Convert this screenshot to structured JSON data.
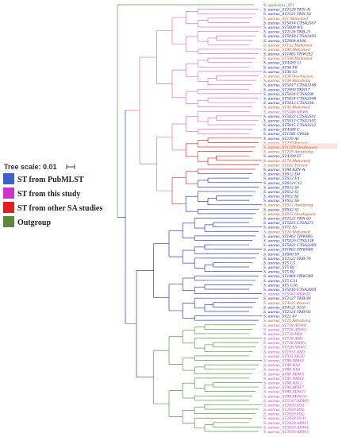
{
  "scale": {
    "label": "Tree scale: 0.01"
  },
  "legend": [
    {
      "label": "ST from PubMLST",
      "color": "#3b62c8"
    },
    {
      "label": "ST from this study",
      "color": "#cc33cc"
    },
    {
      "label": "ST from other SA studies",
      "color": "#e02020"
    },
    {
      "label": "Outgroup",
      "color": "#5a8a3a"
    }
  ],
  "colors": {
    "pubmlst_text": "#1a1aa8",
    "this_study_text": "#c040c0",
    "other_sa_text": "#c8501e",
    "outgroup_text": "#3a8a2a",
    "branch_pink": "#e070c0",
    "branch_blue": "#3040c0",
    "branch_green": "#5a9a4a",
    "branch_red": "#e03030",
    "highlight_bg": "#fbe4e0"
  },
  "leaves": [
    {
      "text": "S. epidermis_ST1",
      "group": "outgroup"
    },
    {
      "text": "S. aureus_ST2128 TKN-41",
      "group": "pubmlst"
    },
    {
      "text": "S. aureus_ST2125 TKN-54",
      "group": "pubmlst"
    },
    {
      "text": "S. aureus_ST1 Mahomed",
      "group": "other"
    },
    {
      "text": "S. aureus_ST5014 CTSA3567",
      "group": "pubmlst"
    },
    {
      "text": "S. aureus_ST5608 W6",
      "group": "pubmlst"
    },
    {
      "text": "S. aureus_ST2126 TKB-21",
      "group": "pubmlst"
    },
    {
      "text": "S. aureus_ST5018 CTSA3195",
      "group": "pubmlst"
    },
    {
      "text": "S. aureus_ST2068 A166",
      "group": "pubmlst"
    },
    {
      "text": "S. aureus_ST152 Mahomed",
      "group": "other"
    },
    {
      "text": "S. aureus_ST30 Mahomed",
      "group": "other"
    },
    {
      "text": "S. aureus_ST1865 THW292",
      "group": "pubmlst"
    },
    {
      "text": "S. aureus_ST508 Mahomed",
      "group": "other"
    },
    {
      "text": "S. aureus_ST4589 51",
      "group": "pubmlst"
    },
    {
      "text": "S. aureus_ST36 F8",
      "group": "pubmlst"
    },
    {
      "text": "S. aureus_ST36 S3",
      "group": "pubmlst"
    },
    {
      "text": "S. aureus_ST36 Oosthuysen",
      "group": "other"
    },
    {
      "text": "S. aureus_ST36 Antiabong",
      "group": "other"
    },
    {
      "text": "S. aureus_ST5017 CTSA3148",
      "group": "pubmlst"
    },
    {
      "text": "S. aureus_ST2090 TKH17",
      "group": "pubmlst"
    },
    {
      "text": "S. aureus_ST5024 CTSA598",
      "group": "pubmlst"
    },
    {
      "text": "S. aureus_ST5024 CTSA3348",
      "group": "pubmlst"
    },
    {
      "text": "S. aureus_ST5012 CTSA336",
      "group": "pubmlst"
    },
    {
      "text": "S. aureus_ST45 Mahomed",
      "group": "other"
    },
    {
      "text": "S. aureus_ST5546 NRW6",
      "group": "this"
    },
    {
      "text": "S. aureus_ST5022 CTSA3501",
      "group": "pubmlst"
    },
    {
      "text": "S. aureus_ST5013 CTSA3105",
      "group": "pubmlst"
    },
    {
      "text": "S. aureus_ST5015 CTSA3212",
      "group": "pubmlst"
    },
    {
      "text": "S. aureus_ST4588 C",
      "group": "pubmlst"
    },
    {
      "text": "S. aureus_ST1585 CPS4b",
      "group": "pubmlst"
    },
    {
      "text": "S. aureus_ST239 A1",
      "group": "pubmlst"
    },
    {
      "text": "S. aureus_ST239 Perovic",
      "group": "other"
    },
    {
      "text": "S. aureus_ST1239 Oosthuysen",
      "group": "other",
      "highlight": true
    },
    {
      "text": "S. aureus_ST239 Antiabong",
      "group": "other"
    },
    {
      "text": "S. aureus_ST4590 57",
      "group": "pubmlst"
    },
    {
      "text": "S. aureus_ST78 Mahomed",
      "group": "other"
    },
    {
      "text": "S. aureus_ST162 Perovic",
      "group": "other"
    },
    {
      "text": "S. aureus_ST88 KZN-A",
      "group": "pubmlst"
    },
    {
      "text": "S. aureus_ST612 D4",
      "group": "pubmlst"
    },
    {
      "text": "S. aureus_ST612 E4",
      "group": "pubmlst"
    },
    {
      "text": "S. aureus_ST612 C12",
      "group": "pubmlst"
    },
    {
      "text": "S. aureus_ST612 S4",
      "group": "pubmlst"
    },
    {
      "text": "S. aureus_ST612 S1",
      "group": "pubmlst"
    },
    {
      "text": "S. aureus_ST612 S2",
      "group": "pubmlst"
    },
    {
      "text": "S. aureus_ST612 S6",
      "group": "pubmlst"
    },
    {
      "text": "S. aureus_ST612 Antiabong",
      "group": "other"
    },
    {
      "text": "S. aureus_ST632 S1",
      "group": "pubmlst"
    },
    {
      "text": "S. aureus_ST612 Oosthuysen",
      "group": "other"
    },
    {
      "text": "S. aureus_ST2123 TKN-62",
      "group": "pubmlst"
    },
    {
      "text": "S. aureus_ST5025 CTSA371",
      "group": "pubmlst"
    },
    {
      "text": "S. aureus_ST72 S5",
      "group": "pubmlst"
    },
    {
      "text": "S. aureus_ST20 Mahomed",
      "group": "other"
    },
    {
      "text": "S. aureus_ST1862 THW065",
      "group": "pubmlst"
    },
    {
      "text": "S. aureus_ST5020 CTSA138",
      "group": "pubmlst"
    },
    {
      "text": "S. aureus_ST5023 CTSA3269",
      "group": "pubmlst"
    },
    {
      "text": "S. aureus_ST1863 THW068",
      "group": "pubmlst"
    },
    {
      "text": "S. aureus_ST600 S9",
      "group": "pubmlst"
    },
    {
      "text": "S. aureus_ST2122 TKB-76",
      "group": "pubmlst"
    },
    {
      "text": "S. aureus_ST5 C5",
      "group": "pubmlst"
    },
    {
      "text": "S. aureus_ST5 B1",
      "group": "pubmlst"
    },
    {
      "text": "S. aureus_ST5 B2",
      "group": "pubmlst"
    },
    {
      "text": "S. aureus_ST1864 THW288",
      "group": "pubmlst"
    },
    {
      "text": "S. aureus_ST5 C31",
      "group": "pubmlst"
    },
    {
      "text": "S. aureus_ST5 C16",
      "group": "pubmlst"
    },
    {
      "text": "S. aureus_ST5016 CTSA3009",
      "group": "pubmlst"
    },
    {
      "text": "S. aureus_ST5543 NRW10",
      "group": "this"
    },
    {
      "text": "S. aureus_ST2127 TKB-48",
      "group": "pubmlst"
    },
    {
      "text": "S. aureus_ST4121 Perovic",
      "group": "other"
    },
    {
      "text": "S. aureus_ST4121 9210",
      "group": "pubmlst"
    },
    {
      "text": "S. aureus_ST2124 TKB-93",
      "group": "pubmlst"
    },
    {
      "text": "S. aureus_ST22 S7",
      "group": "pubmlst"
    },
    {
      "text": "S. aureus_ST22 Antiabong",
      "group": "other"
    },
    {
      "text": "S. aureus_ST728 ADW8",
      "group": "this"
    },
    {
      "text": "S. aureus_ST728 ADW2",
      "group": "this"
    },
    {
      "text": "S. aureus_ST728 HS8",
      "group": "this"
    },
    {
      "text": "S. aureus_ST728 AM1",
      "group": "this"
    },
    {
      "text": "S. aureus_ST728 NRW1",
      "group": "this"
    },
    {
      "text": "S. aureus_ST728 NRW5",
      "group": "this"
    },
    {
      "text": "S. aureus_ST1931 AM3",
      "group": "this"
    },
    {
      "text": "S. aureus_ST931 HS10",
      "group": "this"
    },
    {
      "text": "S. aureus_ST80 NRW3",
      "group": "this"
    },
    {
      "text": "S. aureus_ST80 HS3",
      "group": "this"
    },
    {
      "text": "S. aureus_ST80 HS4",
      "group": "this"
    },
    {
      "text": "S. aureus_ST80 ADW5",
      "group": "this"
    },
    {
      "text": "S. aureus_ST80 NRW4",
      "group": "this"
    },
    {
      "text": "S. aureus_ST80 HS12",
      "group": "this"
    },
    {
      "text": "S. aureus_ST80 ADW7",
      "group": "this"
    },
    {
      "text": "S. aureus_ST80 ADW11",
      "group": "this"
    },
    {
      "text": "S. aureus_ST80 ADW10",
      "group": "this"
    },
    {
      "text": "S. aureus_ST5547 ADW9",
      "group": "this"
    },
    {
      "text": "S. aureus_ST2030 HS1",
      "group": "this"
    },
    {
      "text": "S. aureus_ST2030 HS6",
      "group": "this"
    },
    {
      "text": "S. aureus_ST2030 HS2",
      "group": "this"
    },
    {
      "text": "S. aureus_ST2030 HS11",
      "group": "this"
    },
    {
      "text": "S. aureus_ST2030 ADW1",
      "group": "this"
    },
    {
      "text": "S. aureus_ST2030 ADW4",
      "group": "this"
    },
    {
      "text": "S. aureus_ST2030 ADW3",
      "group": "this"
    }
  ]
}
